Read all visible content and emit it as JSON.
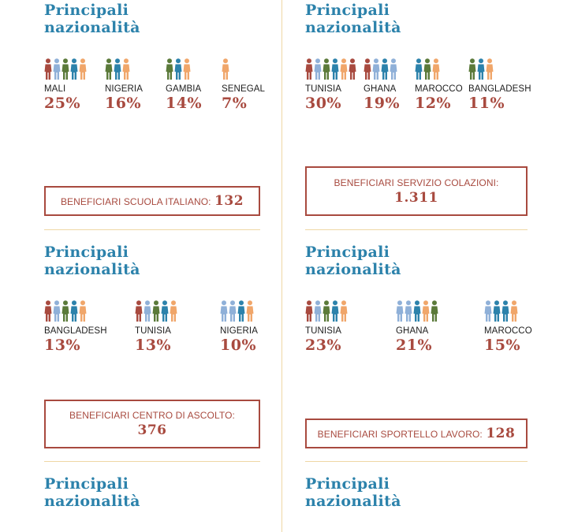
{
  "colors": {
    "heading": "#2c82ab",
    "accent": "#a84a3f",
    "separator": "#efd7a4",
    "fig_red": "#a84a3f",
    "fig_blue": "#8fb0d8",
    "fig_green": "#5b7a3a",
    "fig_teal": "#2c82ab",
    "fig_orange": "#f0a66a"
  },
  "icon": "person-icon",
  "left": {
    "s1": {
      "heading": [
        "Principali",
        "nazionalità"
      ],
      "nationalities": [
        {
          "country": "MALI",
          "pct": "25%",
          "figs": [
            "red",
            "blue",
            "green",
            "teal",
            "orange"
          ]
        },
        {
          "country": "NIGERIA",
          "pct": "16%",
          "figs": [
            "green",
            "teal",
            "orange"
          ]
        },
        {
          "country": "GAMBIA",
          "pct": "14%",
          "figs": [
            "green",
            "teal",
            "orange"
          ]
        },
        {
          "country": "SENEGAL",
          "pct": "7%",
          "figs": [
            "orange"
          ]
        }
      ],
      "box_label": "BENEFICIARI SCUOLA ITALIANO:",
      "box_value": "132"
    },
    "s2": {
      "heading": [
        "Principali",
        "nazionalità"
      ],
      "nationalities": [
        {
          "country": "BANGLADESH",
          "pct": "13%",
          "figs": [
            "red",
            "blue",
            "green",
            "teal",
            "orange"
          ]
        },
        {
          "country": "TUNISIA",
          "pct": "13%",
          "figs": [
            "red",
            "blue",
            "green",
            "teal",
            "orange"
          ]
        },
        {
          "country": "NIGERIA",
          "pct": "10%",
          "figs": [
            "blue",
            "blue",
            "teal",
            "orange"
          ]
        }
      ],
      "box_label": "BENEFICIARI CENTRO DI ASCOLTO:",
      "box_value": "376"
    },
    "s3": {
      "heading": [
        "Principali",
        "nazionalità"
      ]
    }
  },
  "right": {
    "s1": {
      "heading": [
        "Principali",
        "nazionalità"
      ],
      "nationalities": [
        {
          "country": "TUNISIA",
          "pct": "30%",
          "figs": [
            "red",
            "blue",
            "green",
            "teal",
            "orange",
            "red"
          ]
        },
        {
          "country": "GHANA",
          "pct": "19%",
          "figs": [
            "red",
            "blue",
            "teal",
            "blue"
          ]
        },
        {
          "country": "MAROCCO",
          "pct": "12%",
          "figs": [
            "teal",
            "green",
            "orange"
          ]
        },
        {
          "country": "BANGLADESH",
          "pct": "11%",
          "figs": [
            "green",
            "teal",
            "orange"
          ]
        }
      ],
      "box_label": "BENEFICIARI SERVIZIO COLAZIONI:",
      "box_value": "1.311"
    },
    "s2": {
      "heading": [
        "Principali",
        "nazionalità"
      ],
      "nationalities": [
        {
          "country": "TUNISIA",
          "pct": "23%",
          "figs": [
            "red",
            "blue",
            "green",
            "teal",
            "orange"
          ]
        },
        {
          "country": "GHANA",
          "pct": "21%",
          "figs": [
            "blue",
            "blue",
            "teal",
            "orange",
            "green"
          ]
        },
        {
          "country": "MAROCCO",
          "pct": "15%",
          "figs": [
            "blue",
            "teal",
            "teal",
            "orange"
          ]
        }
      ],
      "box_label": "BENEFICIARI SPORTELLO LAVORO:",
      "box_value": "128"
    },
    "s3": {
      "heading": [
        "Principali",
        "nazionalità"
      ]
    }
  }
}
